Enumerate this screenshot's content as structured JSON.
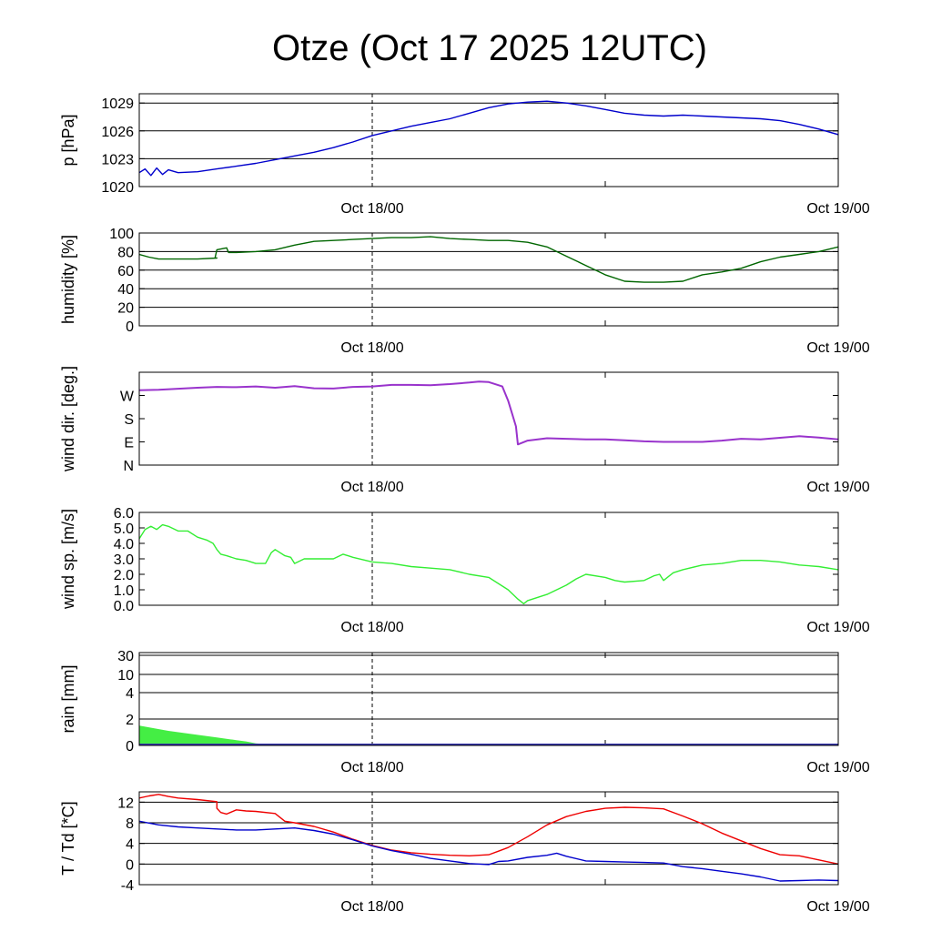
{
  "title": "Otze (Oct 17 2025 12UTC)",
  "x_axis": {
    "range_hours": [
      0,
      36
    ],
    "tick_hours": [
      12,
      36
    ],
    "tick_labels": [
      "Oct 18/00",
      "Oct 19/00"
    ],
    "minor_tick_hours": [
      24
    ],
    "marker_hour": 12
  },
  "chart_data": [
    {
      "id": "pressure",
      "type": "line",
      "ylabel": "p [hPa]",
      "ylim": [
        1020,
        1030
      ],
      "yticks": [
        1020,
        1023,
        1026,
        1029
      ],
      "ytick_labels": [
        "1020",
        "1023",
        "1026",
        "1029"
      ],
      "grid": true,
      "series": [
        {
          "color": "#0000cc",
          "x": [
            0,
            0.3,
            0.6,
            0.9,
            1.2,
            1.5,
            2,
            3,
            4,
            5,
            6,
            7,
            8,
            9,
            10,
            11,
            12,
            13,
            14,
            15,
            16,
            17,
            18,
            19,
            20,
            21,
            22,
            23,
            24,
            25,
            26,
            27,
            28,
            29,
            30,
            31,
            32,
            33,
            34,
            35,
            36
          ],
          "y": [
            1021.5,
            1021.9,
            1021.2,
            1022.0,
            1021.3,
            1021.8,
            1021.5,
            1021.6,
            1021.9,
            1022.2,
            1022.5,
            1022.9,
            1023.3,
            1023.7,
            1024.2,
            1024.8,
            1025.5,
            1026.0,
            1026.5,
            1026.9,
            1027.3,
            1027.9,
            1028.5,
            1028.9,
            1029.1,
            1029.2,
            1029.0,
            1028.7,
            1028.3,
            1027.9,
            1027.7,
            1027.6,
            1027.7,
            1027.6,
            1027.5,
            1027.4,
            1027.3,
            1027.1,
            1026.7,
            1026.2,
            1025.6
          ]
        }
      ]
    },
    {
      "id": "humidity",
      "type": "line",
      "ylabel": "humidity [%]",
      "ylim": [
        0,
        100
      ],
      "yticks": [
        0,
        20,
        40,
        60,
        80,
        100
      ],
      "ytick_labels": [
        "0",
        "20",
        "40",
        "60",
        "80",
        "100"
      ],
      "grid": true,
      "series": [
        {
          "color": "#006600",
          "x": [
            0,
            0.5,
            1,
            2,
            3,
            4,
            3.9,
            4.0,
            4.5,
            4.6,
            5,
            6,
            7,
            8,
            9,
            10,
            11,
            12,
            13,
            14,
            15,
            16,
            17,
            18,
            19,
            20,
            21,
            22,
            23,
            24,
            25,
            26,
            27,
            28,
            29,
            30,
            31,
            32,
            33,
            34,
            35,
            36
          ],
          "y": [
            77,
            74,
            72,
            72,
            72,
            73,
            73,
            82,
            84,
            79,
            79,
            80,
            82,
            87,
            91,
            92,
            93,
            94,
            95,
            95,
            96,
            94,
            93,
            92,
            92,
            90,
            85,
            75,
            65,
            55,
            48,
            47,
            47,
            48,
            55,
            58,
            62,
            69,
            74,
            77,
            80,
            85
          ]
        }
      ]
    },
    {
      "id": "wind_direction",
      "type": "line",
      "ylabel": "wind dir. [deg.]",
      "ylim": [
        0,
        360
      ],
      "yticks": [
        0,
        90,
        180,
        270
      ],
      "ytick_labels": [
        "N",
        "E",
        "S",
        "W"
      ],
      "grid": false,
      "series": [
        {
          "color": "#9933cc",
          "x": [
            0,
            1,
            2,
            3,
            4,
            5,
            6,
            7,
            8,
            9,
            10,
            11,
            12,
            13,
            14,
            15,
            16,
            17,
            17.5,
            18,
            18.7,
            19,
            19.2,
            19.4,
            19.5,
            20,
            21,
            22,
            23,
            24,
            25,
            26,
            27,
            28,
            29,
            30,
            31,
            32,
            33,
            34,
            35,
            36
          ],
          "y": [
            290,
            292,
            296,
            300,
            303,
            302,
            305,
            300,
            306,
            298,
            297,
            303,
            305,
            311,
            311,
            310,
            314,
            320,
            324,
            322,
            305,
            250,
            200,
            150,
            80,
            95,
            104,
            102,
            100,
            100,
            96,
            92,
            90,
            90,
            90,
            95,
            102,
            100,
            106,
            112,
            107,
            100
          ]
        }
      ]
    },
    {
      "id": "wind_speed",
      "type": "line",
      "ylabel": "wind sp. [m/s]",
      "ylim": [
        0,
        6
      ],
      "yticks": [
        0,
        1,
        2,
        3,
        4,
        5,
        6
      ],
      "ytick_labels": [
        "0.0",
        "1.0",
        "2.0",
        "3.0",
        "4.0",
        "5.0",
        "6.0"
      ],
      "grid": false,
      "series": [
        {
          "color": "#33ee33",
          "x": [
            0,
            0.3,
            0.6,
            0.9,
            1.2,
            1.5,
            2,
            2.5,
            3,
            3.5,
            3.8,
            4.0,
            4.2,
            4.5,
            5,
            5.5,
            6,
            6.5,
            6.8,
            7,
            7.5,
            7.8,
            8,
            8.5,
            9,
            10,
            10.5,
            11,
            12,
            13,
            14,
            15,
            16,
            17,
            18,
            19,
            19.5,
            19.8,
            20,
            21,
            22,
            22.5,
            23,
            24,
            24.5,
            25,
            26,
            26.5,
            26.8,
            27,
            27.5,
            28,
            29,
            30,
            31,
            32,
            33,
            34,
            35,
            36
          ],
          "y": [
            4.3,
            4.9,
            5.1,
            4.9,
            5.2,
            5.1,
            4.8,
            4.8,
            4.4,
            4.2,
            4.0,
            3.6,
            3.3,
            3.2,
            3.0,
            2.9,
            2.7,
            2.7,
            3.4,
            3.6,
            3.2,
            3.1,
            2.7,
            3.0,
            3.0,
            3.0,
            3.3,
            3.1,
            2.8,
            2.7,
            2.5,
            2.4,
            2.3,
            2.0,
            1.8,
            1.0,
            0.4,
            0.1,
            0.3,
            0.7,
            1.3,
            1.7,
            2.0,
            1.8,
            1.6,
            1.5,
            1.6,
            1.9,
            2.0,
            1.6,
            2.1,
            2.3,
            2.6,
            2.7,
            2.9,
            2.9,
            2.8,
            2.6,
            2.5,
            2.3
          ]
        }
      ]
    },
    {
      "id": "rain",
      "type": "area",
      "ylabel": "rain [mm]",
      "scale": "nonlinear",
      "ylim": [
        0,
        30
      ],
      "yticks": [
        0,
        2,
        4,
        10,
        30
      ],
      "ytick_labels": [
        "0",
        "2",
        "4",
        "10",
        "30"
      ],
      "grid": true,
      "series": [
        {
          "color": "#44ee44",
          "x": [
            0,
            0.2,
            1.5,
            3,
            4,
            5,
            5.5,
            6,
            7,
            12,
            36
          ],
          "y": [
            1.5,
            1.45,
            1.1,
            0.8,
            0.6,
            0.4,
            0.3,
            0.15,
            0.05,
            0,
            0
          ]
        }
      ]
    },
    {
      "id": "temperature",
      "type": "line",
      "ylabel": "T / Td [*C]",
      "ylim": [
        -4,
        14
      ],
      "yticks": [
        -4,
        0,
        4,
        8,
        12
      ],
      "ytick_labels": [
        "-4",
        "0",
        "4",
        "8",
        "12"
      ],
      "grid": true,
      "series": [
        {
          "color": "#ee0000",
          "x": [
            0,
            0.5,
            1,
            1.5,
            2,
            3,
            4,
            4.0,
            4.2,
            4.5,
            5,
            5.5,
            6,
            7,
            7.5,
            8,
            9,
            10,
            11,
            12,
            13,
            14,
            15,
            16,
            17,
            18,
            18.5,
            19,
            20,
            21,
            22,
            23,
            24,
            25,
            26,
            27,
            28,
            29,
            30,
            31,
            32,
            33,
            34,
            35,
            36
          ],
          "y": [
            12.8,
            13.2,
            13.5,
            13.1,
            12.8,
            12.5,
            12.1,
            10.8,
            10.0,
            9.7,
            10.5,
            10.3,
            10.2,
            9.8,
            8.3,
            8.0,
            7.3,
            6.2,
            4.8,
            3.6,
            2.7,
            2.2,
            1.9,
            1.7,
            1.6,
            1.8,
            2.5,
            3.2,
            5.3,
            7.6,
            9.2,
            10.2,
            10.8,
            11.0,
            10.9,
            10.7,
            9.3,
            7.8,
            6.0,
            4.5,
            3.0,
            1.8,
            1.6,
            0.8,
            0.0
          ]
        },
        {
          "color": "#0000cc",
          "x": [
            0,
            1,
            2,
            3,
            4,
            5,
            6,
            7,
            8,
            9,
            10,
            11,
            12,
            13,
            14,
            15,
            16,
            17,
            18,
            18.5,
            19,
            20,
            21,
            21.5,
            22,
            23,
            24,
            25,
            26,
            27,
            28,
            29,
            30,
            31,
            32,
            33,
            34,
            35,
            36
          ],
          "y": [
            8.3,
            7.6,
            7.2,
            7.0,
            6.8,
            6.6,
            6.6,
            6.8,
            7.0,
            6.5,
            5.8,
            4.7,
            3.5,
            2.6,
            1.9,
            1.1,
            0.6,
            0.1,
            -0.1,
            0.5,
            0.6,
            1.3,
            1.7,
            2.1,
            1.5,
            0.6,
            0.5,
            0.4,
            0.3,
            0.2,
            -0.5,
            -0.9,
            -1.4,
            -1.9,
            -2.5,
            -3.3,
            -3.2,
            -3.1,
            -3.2
          ]
        }
      ]
    }
  ]
}
